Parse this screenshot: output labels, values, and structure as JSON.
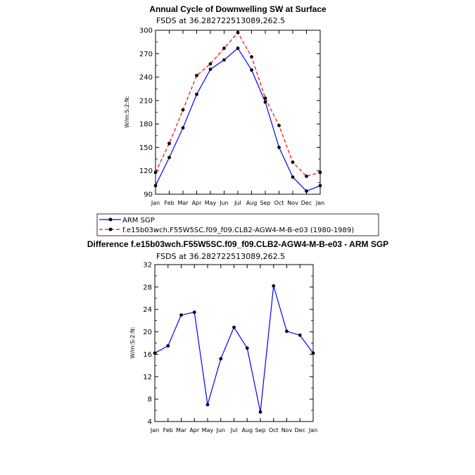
{
  "chart_data": [
    {
      "type": "line",
      "title": "Annual Cycle of Downwelling SW at Surface",
      "subtitle": "FSDS at 36.282722513089,262.5",
      "xlabel": "",
      "ylabel": "W/m:S:2:N:",
      "categories": [
        "Jan",
        "Feb",
        "Mar",
        "Apr",
        "May",
        "Jun",
        "Jul",
        "Aug",
        "Sep",
        "Oct",
        "Nov",
        "Dec",
        "Jan"
      ],
      "ylim": [
        90,
        300
      ],
      "yticks": [
        90,
        120,
        150,
        180,
        210,
        240,
        270,
        300
      ],
      "series": [
        {
          "name": "ARM SGP",
          "color": "#0000ff",
          "dash": "solid",
          "values": [
            101,
            137,
            175,
            218,
            250,
            262,
            277,
            249,
            208,
            150,
            112,
            94,
            101
          ]
        },
        {
          "name": "f.e15b03wch.F55W5SC.f09_f09.CLB2-AGW4-M-B-e03 (1980-1989)",
          "color": "#ff0000",
          "dash": "dashed",
          "values": [
            118,
            155,
            198,
            242,
            257,
            277,
            297,
            266,
            213,
            178,
            131,
            113,
            118
          ]
        }
      ],
      "legend": [
        "ARM SGP",
        "f.e15b03wch.F55W5SC.f09_f09.CLB2-AGW4-M-B-e03 (1980-1989)"
      ]
    },
    {
      "type": "line",
      "title": "Difference f.e15b03wch.F55W5SC.f09_f09.CLB2-AGW4-M-B-e03 - ARM SGP",
      "subtitle": "FSDS at 36.282722513089,262.5",
      "xlabel": "",
      "ylabel": "W/m:S:2:N:",
      "categories": [
        "Jan",
        "Feb",
        "Mar",
        "Apr",
        "May",
        "Jun",
        "Jul",
        "Aug",
        "Sep",
        "Oct",
        "Nov",
        "Dec",
        "Jan"
      ],
      "ylim": [
        4,
        32
      ],
      "yticks": [
        4,
        8,
        12,
        16,
        20,
        24,
        28,
        32
      ],
      "series": [
        {
          "name": "Difference",
          "color": "#0000ff",
          "dash": "solid",
          "values": [
            16.2,
            17.5,
            23.0,
            23.5,
            7.0,
            15.2,
            20.8,
            17.1,
            5.7,
            28.2,
            20.1,
            19.4,
            16.2
          ]
        }
      ]
    }
  ]
}
